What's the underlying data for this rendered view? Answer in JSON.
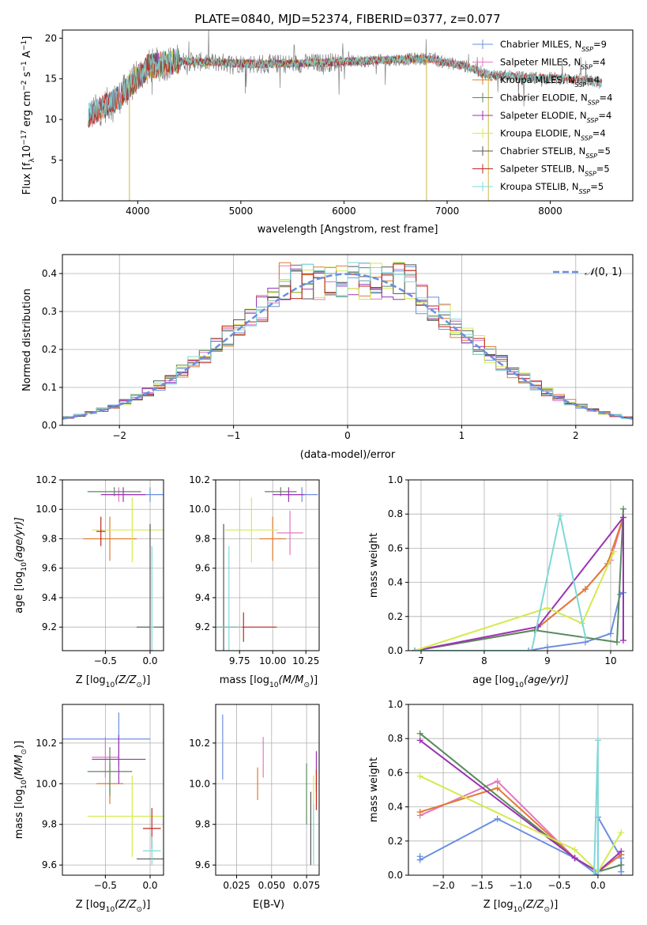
{
  "figure": {
    "title": "PLATE=0840, MJD=52374, FIBERID=0377, z=0.077",
    "colors": {
      "blue": "#6a8fdf",
      "pink": "#e377c2",
      "orange": "#e07b30",
      "green": "#5a8a5e",
      "purple": "#9b33b5",
      "yellow": "#d4ea4e",
      "grey": "#555555",
      "red": "#c0271e",
      "cyan": "#7fd8d8",
      "spectrum_grey": "#808080"
    }
  },
  "chart_data": [
    {
      "id": "spectrum",
      "type": "line",
      "title": "PLATE=0840, MJD=52374, FIBERID=0377, z=0.077",
      "xlabel": "wavelength [Angstrom, rest frame]",
      "ylabel_parts": [
        "Flux [f",
        "λ",
        "10",
        "−17",
        " erg cm",
        "−2",
        " s",
        "−1",
        " A",
        "−1",
        "]"
      ],
      "xlim": [
        3270,
        8800
      ],
      "ylim": [
        0,
        21
      ],
      "xticks": [
        4000,
        5000,
        6000,
        7000,
        8000
      ],
      "yticks": [
        0,
        5,
        10,
        15,
        20
      ],
      "legend_position": "upper right",
      "legend": [
        {
          "prefix": "Chabrier MILES, N",
          "sub": "SSP",
          "suffix": "=9",
          "color": "blue"
        },
        {
          "prefix": "Salpeter MILES, N",
          "sub": "SSP",
          "suffix": "=4",
          "color": "pink"
        },
        {
          "prefix": "Kroupa MILES, N",
          "sub": "SSP",
          "suffix": "=4",
          "color": "orange"
        },
        {
          "prefix": "Chabrier ELODIE, N",
          "sub": "SSP",
          "suffix": "=4",
          "color": "green"
        },
        {
          "prefix": "Salpeter ELODIE, N",
          "sub": "SSP",
          "suffix": "=4",
          "color": "purple"
        },
        {
          "prefix": "Kroupa ELODIE, N",
          "sub": "SSP",
          "suffix": "=4",
          "color": "yellow"
        },
        {
          "prefix": "Chabrier STELIB, N",
          "sub": "SSP",
          "suffix": "=5",
          "color": "grey"
        },
        {
          "prefix": "Salpeter STELIB, N",
          "sub": "SSP",
          "suffix": "=5",
          "color": "red"
        },
        {
          "prefix": "Kroupa STELIB, N",
          "sub": "SSP",
          "suffix": "=5",
          "color": "cyan"
        }
      ],
      "continuum_anchors": [
        [
          3520,
          10.5
        ],
        [
          3800,
          12.5
        ],
        [
          3950,
          14.5
        ],
        [
          4100,
          16.5
        ],
        [
          4400,
          17.2
        ],
        [
          4800,
          17.0
        ],
        [
          5200,
          16.8
        ],
        [
          5600,
          16.9
        ],
        [
          6000,
          17.1
        ],
        [
          6400,
          17.3
        ],
        [
          6800,
          17.5
        ],
        [
          7200,
          16.5
        ],
        [
          7400,
          15.5
        ],
        [
          7700,
          15.2
        ],
        [
          8200,
          15.0
        ],
        [
          8500,
          14.5
        ]
      ],
      "model_ranges": {
        "MILES": [
          3540,
          7400
        ],
        "ELODIE": [
          3900,
          6800
        ],
        "STELIB": [
          3520,
          8500
        ]
      },
      "spikes": [
        {
          "x": 3920,
          "y": 0
        },
        {
          "x": 6800,
          "y": 0
        },
        {
          "x": 7400,
          "y": 0
        }
      ]
    },
    {
      "id": "residuals",
      "type": "step-histogram",
      "xlabel": "(data-model)/error",
      "ylabel": "Normed distribution",
      "xlim": [
        -2.5,
        2.5
      ],
      "ylim": [
        0,
        0.45
      ],
      "xticks": [
        -2,
        -1,
        0,
        1,
        2
      ],
      "yticks": [
        0.0,
        0.1,
        0.2,
        0.3,
        0.4
      ],
      "bin_width": 0.1,
      "legend_position": "upper right",
      "legend": [
        {
          "label_italic": "𝒩",
          "label_rest": "(0, 1)",
          "color": "blue",
          "style": "dashed"
        }
      ],
      "reference_curve": "gaussian",
      "n_models": 9
    },
    {
      "id": "age_vs_Z",
      "type": "errorbar",
      "xlabel_parts": [
        "Z [log",
        "10",
        "(Z/Z",
        "⊙",
        ")]"
      ],
      "ylabel_parts": [
        "age  [log",
        "10",
        "(age/yr)]"
      ],
      "xlim": [
        -0.98,
        0.15
      ],
      "ylim": [
        9.04,
        10.2
      ],
      "xticks": [
        -0.5,
        0.0
      ],
      "yticks": [
        9.2,
        9.4,
        9.6,
        9.8,
        10.0,
        10.2
      ],
      "points": [
        {
          "color": "blue",
          "x": 0.0,
          "xerr": 0.2,
          "y": 10.1,
          "yerr": 0.05
        },
        {
          "color": "pink",
          "x": -0.35,
          "xerr": 0.15,
          "y": 10.1,
          "yerr": 0.05
        },
        {
          "color": "orange",
          "x": -0.45,
          "xerr": 0.3,
          "y": 9.8,
          "yerr": 0.15
        },
        {
          "color": "green",
          "x": -0.4,
          "xerr": 0.3,
          "y": 10.12,
          "yerr": 0.03
        },
        {
          "color": "purple",
          "x": -0.3,
          "xerr": 0.25,
          "y": 10.1,
          "yerr": 0.05
        },
        {
          "color": "yellow",
          "x": -0.2,
          "xerr": 0.45,
          "y": 9.86,
          "yerr": 0.22
        },
        {
          "color": "grey",
          "x": 0.0,
          "xerr": 0.15,
          "y": 9.2,
          "yerr": 0.7
        },
        {
          "color": "red",
          "x": -0.55,
          "xerr": 0.05,
          "y": 9.85,
          "yerr": 0.1
        },
        {
          "color": "cyan",
          "x": 0.02,
          "xerr": 0.02,
          "y": 9.2,
          "yerr": 0.55
        }
      ]
    },
    {
      "id": "age_vs_mass",
      "type": "errorbar",
      "xlabel_parts": [
        "mass [log",
        "10",
        "(M/M",
        "⊙",
        ")]"
      ],
      "ylabel_parts": [],
      "xlim": [
        9.57,
        10.35
      ],
      "ylim": [
        9.04,
        10.2
      ],
      "xticks": [
        9.75,
        10.0,
        10.25
      ],
      "yticks": [
        9.2,
        9.4,
        9.6,
        9.8,
        10.0,
        10.2
      ],
      "points": [
        {
          "color": "blue",
          "x": 10.22,
          "xerr": 0.12,
          "y": 10.1,
          "yerr": 0.05
        },
        {
          "color": "pink",
          "x": 10.13,
          "xerr": 0.1,
          "y": 9.84,
          "yerr": 0.15
        },
        {
          "color": "orange",
          "x": 10.0,
          "xerr": 0.1,
          "y": 9.8,
          "yerr": 0.15
        },
        {
          "color": "green",
          "x": 10.06,
          "xerr": 0.12,
          "y": 10.12,
          "yerr": 0.03
        },
        {
          "color": "purple",
          "x": 10.12,
          "xerr": 0.12,
          "y": 10.1,
          "yerr": 0.05
        },
        {
          "color": "yellow",
          "x": 9.84,
          "xerr": 0.2,
          "y": 9.86,
          "yerr": 0.22
        },
        {
          "color": "grey",
          "x": 9.63,
          "xerr": 0.1,
          "y": 9.2,
          "yerr": 0.7
        },
        {
          "color": "red",
          "x": 9.78,
          "xerr": 0.25,
          "y": 9.2,
          "yerr": 0.1
        },
        {
          "color": "cyan",
          "x": 9.67,
          "xerr": 0.1,
          "y": 9.2,
          "yerr": 0.55
        }
      ]
    },
    {
      "id": "weight_vs_age",
      "type": "line",
      "xlabel_parts": [
        "age  [log",
        "10",
        "(age/yr)]"
      ],
      "ylabel": "mass weight",
      "xlim": [
        6.8,
        10.35
      ],
      "ylim": [
        0,
        1.0
      ],
      "xticks": [
        7,
        8,
        9,
        10
      ],
      "yticks": [
        0.0,
        0.2,
        0.4,
        0.6,
        0.8,
        1.0
      ],
      "series": [
        {
          "color": "blue",
          "x": [
            6.9,
            8.7,
            9.0,
            9.6,
            10.0,
            10.15,
            10.2
          ],
          "y": [
            0.0,
            0.0,
            0.02,
            0.05,
            0.1,
            0.33,
            0.34
          ]
        },
        {
          "color": "pink",
          "x": [
            6.9,
            8.8,
            9.6,
            10.0,
            10.2
          ],
          "y": [
            0.0,
            0.12,
            0.36,
            0.53,
            0.78
          ]
        },
        {
          "color": "orange",
          "x": [
            6.9,
            8.8,
            9.6,
            9.95,
            10.2
          ],
          "y": [
            0.0,
            0.12,
            0.36,
            0.51,
            0.78
          ]
        },
        {
          "color": "green",
          "x": [
            6.9,
            8.8,
            10.1,
            10.2
          ],
          "y": [
            0.0,
            0.12,
            0.05,
            0.83
          ]
        },
        {
          "color": "purple",
          "x": [
            6.9,
            8.85,
            10.2,
            10.2
          ],
          "y": [
            0.0,
            0.14,
            0.78,
            0.06
          ]
        },
        {
          "color": "yellow",
          "x": [
            6.9,
            9.0,
            9.55,
            10.05
          ],
          "y": [
            0.0,
            0.25,
            0.16,
            0.58
          ]
        },
        {
          "color": "cyan",
          "x": [
            6.9,
            8.75,
            9.2,
            9.6
          ],
          "y": [
            0.0,
            0.0,
            0.79,
            0.08
          ]
        }
      ]
    },
    {
      "id": "mass_vs_Z",
      "type": "errorbar",
      "xlabel_parts": [
        "Z [log",
        "10",
        "(Z/Z",
        "⊙",
        ")]"
      ],
      "ylabel_parts": [
        "mass [log",
        "10",
        "(M/M",
        "⊙",
        ")]"
      ],
      "xlim": [
        -0.98,
        0.15
      ],
      "ylim": [
        9.55,
        10.39
      ],
      "xticks": [
        -0.5,
        0.0
      ],
      "yticks": [
        9.6,
        9.8,
        10.0,
        10.2
      ],
      "points": [
        {
          "color": "blue",
          "x": -0.5,
          "xerr": 0.5,
          "y": 10.22,
          "yerr": 0.0
        },
        {
          "color": "blue",
          "x": -0.35,
          "xerr": 0.0,
          "y": 10.22,
          "yerr": 0.13
        },
        {
          "color": "pink",
          "x": -0.5,
          "xerr": 0.15,
          "y": 10.13,
          "yerr": 0.1
        },
        {
          "color": "orange",
          "x": -0.45,
          "xerr": 0.15,
          "y": 10.0,
          "yerr": 0.1
        },
        {
          "color": "green",
          "x": -0.45,
          "xerr": 0.25,
          "y": 10.06,
          "yerr": 0.12
        },
        {
          "color": "purple",
          "x": -0.35,
          "xerr": 0.3,
          "y": 10.12,
          "yerr": 0.12
        },
        {
          "color": "yellow",
          "x": -0.2,
          "xerr": 0.5,
          "y": 9.84,
          "yerr": 0.2
        },
        {
          "color": "grey",
          "x": 0.0,
          "xerr": 0.15,
          "y": 9.63,
          "yerr": 0.0
        },
        {
          "color": "red",
          "x": 0.02,
          "xerr": 0.1,
          "y": 9.78,
          "yerr": 0.1
        },
        {
          "color": "cyan",
          "x": 0.02,
          "xerr": 0.1,
          "y": 9.67,
          "yerr": 0.07
        }
      ]
    },
    {
      "id": "mass_vs_ebv",
      "type": "errorbar",
      "xlabel": "E(B-V)",
      "ylabel_parts": [],
      "xlim": [
        0.01,
        0.084
      ],
      "ylim": [
        9.55,
        10.39
      ],
      "xticks": [
        0.025,
        0.05,
        0.075
      ],
      "yticks": [
        9.6,
        9.8,
        10.0,
        10.2
      ],
      "points": [
        {
          "color": "blue",
          "x": 0.015,
          "xerr": 0.0,
          "y": 10.18,
          "yerr": 0.16
        },
        {
          "color": "pink",
          "x": 0.044,
          "xerr": 0.0,
          "y": 10.13,
          "yerr": 0.1
        },
        {
          "color": "orange",
          "x": 0.04,
          "xerr": 0.0,
          "y": 10.0,
          "yerr": 0.08
        },
        {
          "color": "green",
          "x": 0.075,
          "xerr": 0.0,
          "y": 9.95,
          "yerr": 0.15
        },
        {
          "color": "purple",
          "x": 0.082,
          "xerr": 0.0,
          "y": 10.06,
          "yerr": 0.1
        },
        {
          "color": "yellow",
          "x": 0.08,
          "xerr": 0.0,
          "y": 9.84,
          "yerr": 0.2
        },
        {
          "color": "grey",
          "x": 0.078,
          "xerr": 0.0,
          "y": 9.78,
          "yerr": 0.18
        },
        {
          "color": "red",
          "x": 0.082,
          "xerr": 0.0,
          "y": 9.97,
          "yerr": 0.1
        },
        {
          "color": "cyan",
          "x": 0.08,
          "xerr": 0.0,
          "y": 9.75,
          "yerr": 0.15
        }
      ]
    },
    {
      "id": "weight_vs_Z",
      "type": "line",
      "xlabel_parts": [
        "Z [log",
        "10",
        "(Z/Z",
        "⊙",
        ")]"
      ],
      "ylabel": "mass weight",
      "xlim": [
        -2.45,
        0.45
      ],
      "ylim": [
        0,
        1.0
      ],
      "xticks": [
        -2.0,
        -1.5,
        -1.0,
        -0.5,
        0.0
      ],
      "yticks": [
        0.0,
        0.2,
        0.4,
        0.6,
        0.8,
        1.0
      ],
      "series": [
        {
          "color": "blue",
          "x": [
            -2.3,
            -2.3,
            -1.3,
            -0.3,
            0.0,
            0.0,
            0.3,
            0.3
          ],
          "y": [
            0.11,
            0.09,
            0.33,
            0.1,
            0.0,
            0.34,
            0.1,
            0.02
          ]
        },
        {
          "color": "pink",
          "x": [
            -2.3,
            -1.3,
            -0.3,
            0.0,
            0.3
          ],
          "y": [
            0.35,
            0.55,
            0.1,
            0.02,
            0.12
          ]
        },
        {
          "color": "orange",
          "x": [
            -2.3,
            -1.3,
            -0.3,
            0.0,
            0.3
          ],
          "y": [
            0.37,
            0.51,
            0.1,
            0.02,
            0.12
          ]
        },
        {
          "color": "green",
          "x": [
            -2.3,
            -0.3,
            0.0,
            0.3
          ],
          "y": [
            0.83,
            0.1,
            0.02,
            0.06
          ]
        },
        {
          "color": "purple",
          "x": [
            -2.3,
            -0.3,
            0.0,
            0.3
          ],
          "y": [
            0.79,
            0.1,
            0.02,
            0.14
          ]
        },
        {
          "color": "yellow",
          "x": [
            -2.3,
            -0.3,
            0.0,
            0.3
          ],
          "y": [
            0.58,
            0.15,
            0.02,
            0.25
          ]
        },
        {
          "color": "cyan",
          "x": [
            -0.05,
            0.0,
            0.0
          ],
          "y": [
            0.0,
            0.79,
            0.02
          ]
        }
      ]
    }
  ]
}
